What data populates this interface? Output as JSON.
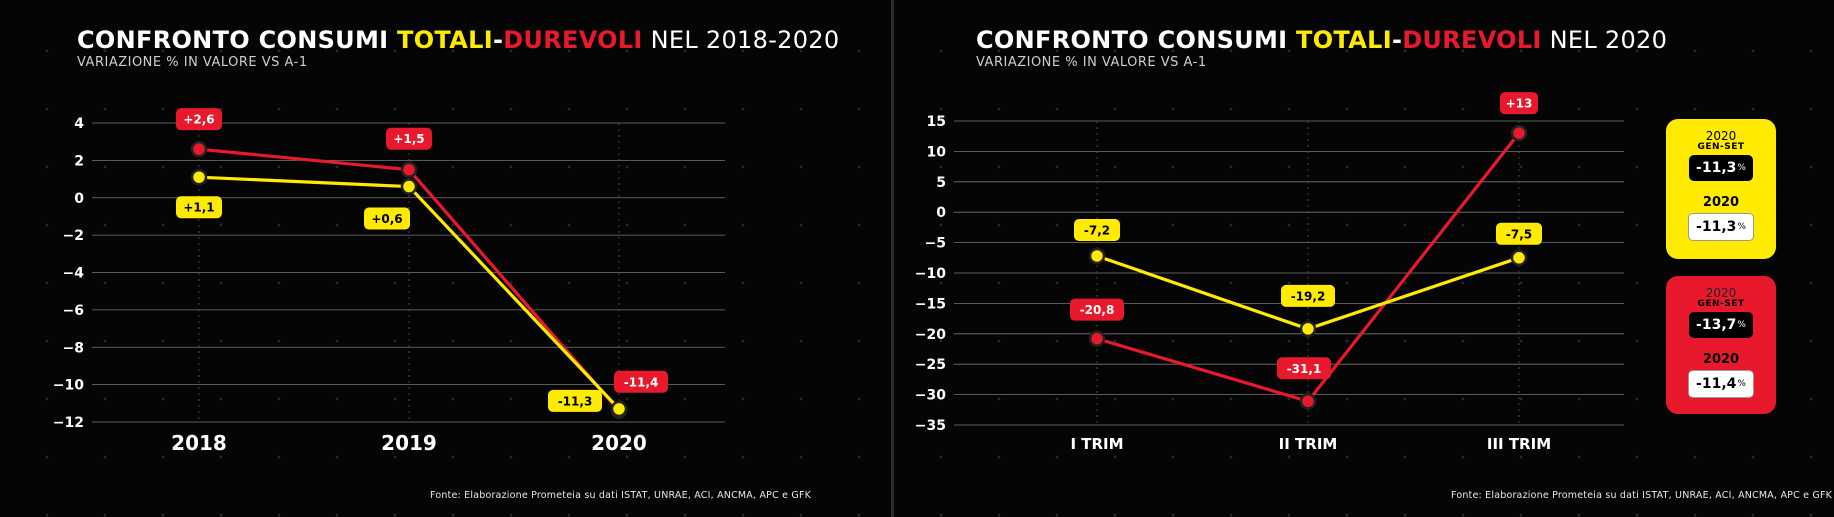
{
  "left": {
    "title_pre": "CONFRONTO CONSUMI ",
    "title_tot": "TOTALI",
    "title_dash": "-",
    "title_dur": "DUREVOLI",
    "title_end": " NEL 2018-2020",
    "subtitle": "VARIAZIONE % IN VALORE VS A-1",
    "source": "Fonte: Elaborazione Prometeia su dati ISTAT, UNRAE, ACI, ANCMA, APC e GFK"
  },
  "right": {
    "title_pre": "CONFRONTO CONSUMI ",
    "title_tot": "TOTALI",
    "title_dash": "-",
    "title_dur": "DUREVOLI",
    "title_end": " NEL 2020",
    "subtitle": "VARIAZIONE % IN VALORE VS A-1",
    "source": "Fonte: Elaborazione Prometeia su dati ISTAT, UNRAE, ACI, ANCMA, APC e GFK"
  },
  "legend": {
    "yellow": {
      "year": "2020",
      "period": "GEN-SET",
      "value_genset": "-11,3",
      "year2": "2020",
      "value_year": "-11,3",
      "unit": "%"
    },
    "red": {
      "year": "2020",
      "period": "GEN-SET",
      "value_genset": "-13,7",
      "year2": "2020",
      "value_year": "-11,4",
      "unit": "%"
    }
  },
  "colors": {
    "totali": "#ffeb00",
    "durevoli": "#e8192c",
    "background": "#000000"
  },
  "chart_data": [
    {
      "type": "line",
      "categories": [
        "2018",
        "2019",
        "2020"
      ],
      "ylim": [
        -12,
        4
      ],
      "yticks": [
        4,
        2,
        0,
        -2,
        -4,
        -6,
        -8,
        -10,
        -12
      ],
      "grid": true,
      "series": [
        {
          "color": "#e8192c",
          "values": [
            2.6,
            1.5,
            -11.4
          ],
          "labels": [
            "+2,6",
            "+1,5",
            "-11,4"
          ]
        },
        {
          "color": "#ffeb00",
          "values": [
            1.1,
            0.6,
            -11.3
          ],
          "labels": [
            "+1,1",
            "+0,6",
            "-11,3"
          ]
        }
      ]
    },
    {
      "type": "line",
      "categories": [
        "I TRIM",
        "II TRIM",
        "III TRIM"
      ],
      "ylim": [
        -35,
        15
      ],
      "yticks": [
        15,
        10,
        5,
        0,
        -5,
        -10,
        -15,
        -20,
        -25,
        -30,
        -35
      ],
      "grid": true,
      "series": [
        {
          "color": "#e8192c",
          "values": [
            -20.8,
            -31.1,
            13
          ],
          "labels": [
            "-20,8",
            "-31,1",
            "+13"
          ]
        },
        {
          "color": "#ffeb00",
          "values": [
            -7.2,
            -19.2,
            -7.5
          ],
          "labels": [
            "-7,2",
            "-19,2",
            "-7,5"
          ]
        }
      ]
    }
  ]
}
